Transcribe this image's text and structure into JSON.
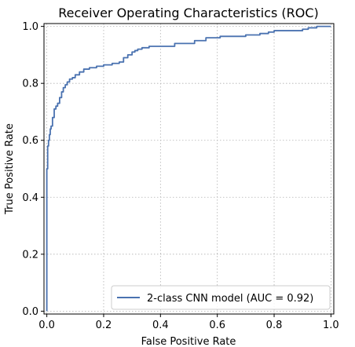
{
  "chart_data": {
    "type": "line",
    "title": "Receiver Operating Characteristics (ROC)",
    "xlabel": "False Positive Rate",
    "ylabel": "True Positive Rate",
    "xlim": [
      -0.01,
      1.01
    ],
    "ylim": [
      -0.01,
      1.01
    ],
    "x_ticks": [
      0.0,
      0.2,
      0.4,
      0.6,
      0.8,
      1.0
    ],
    "x_tick_labels": [
      "0.0",
      "0.2",
      "0.4",
      "0.6",
      "0.8",
      "1.0"
    ],
    "y_ticks": [
      0.0,
      0.2,
      0.4,
      0.6,
      0.8,
      1.0
    ],
    "y_tick_labels": [
      "0.0",
      "0.2",
      "0.4",
      "0.6",
      "0.8",
      "1.0"
    ],
    "grid": true,
    "legend_position": "lower-right",
    "series": [
      {
        "name": "2-class CNN model (AUC = 0.92)",
        "color": "#4a72b0",
        "x": [
          0.0,
          0.0,
          0.003,
          0.003,
          0.006,
          0.006,
          0.009,
          0.009,
          0.012,
          0.012,
          0.015,
          0.015,
          0.02,
          0.02,
          0.026,
          0.026,
          0.032,
          0.032,
          0.038,
          0.038,
          0.045,
          0.045,
          0.052,
          0.052,
          0.058,
          0.058,
          0.065,
          0.065,
          0.072,
          0.072,
          0.08,
          0.08,
          0.09,
          0.09,
          0.1,
          0.1,
          0.115,
          0.115,
          0.13,
          0.13,
          0.15,
          0.15,
          0.175,
          0.175,
          0.2,
          0.2,
          0.23,
          0.23,
          0.255,
          0.255,
          0.27,
          0.27,
          0.285,
          0.285,
          0.3,
          0.3,
          0.31,
          0.31,
          0.32,
          0.32,
          0.335,
          0.335,
          0.36,
          0.36,
          0.4,
          0.4,
          0.45,
          0.45,
          0.52,
          0.52,
          0.56,
          0.56,
          0.61,
          0.61,
          0.7,
          0.7,
          0.75,
          0.75,
          0.78,
          0.78,
          0.8,
          0.8,
          0.9,
          0.9,
          0.92,
          0.92,
          0.95,
          0.95,
          1.0
        ],
        "y": [
          0.0,
          0.5,
          0.5,
          0.58,
          0.58,
          0.6,
          0.6,
          0.62,
          0.62,
          0.64,
          0.64,
          0.65,
          0.65,
          0.68,
          0.68,
          0.71,
          0.71,
          0.72,
          0.72,
          0.73,
          0.73,
          0.75,
          0.75,
          0.77,
          0.77,
          0.785,
          0.785,
          0.795,
          0.795,
          0.805,
          0.805,
          0.815,
          0.815,
          0.82,
          0.82,
          0.83,
          0.83,
          0.84,
          0.84,
          0.85,
          0.85,
          0.855,
          0.855,
          0.86,
          0.86,
          0.865,
          0.865,
          0.87,
          0.87,
          0.875,
          0.875,
          0.89,
          0.89,
          0.9,
          0.9,
          0.91,
          0.91,
          0.915,
          0.915,
          0.92,
          0.92,
          0.925,
          0.925,
          0.93,
          0.93,
          0.93,
          0.93,
          0.94,
          0.94,
          0.95,
          0.95,
          0.96,
          0.96,
          0.965,
          0.965,
          0.97,
          0.97,
          0.975,
          0.975,
          0.98,
          0.98,
          0.985,
          0.985,
          0.99,
          0.99,
          0.995,
          0.995,
          1.0,
          1.0
        ]
      }
    ]
  }
}
